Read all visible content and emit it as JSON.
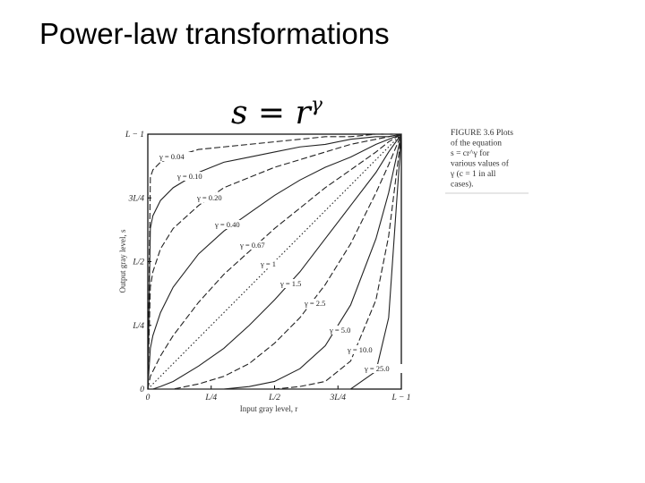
{
  "slide_title": "Power-law transformations",
  "chart_data": {
    "type": "line",
    "formula": {
      "base": "s = r",
      "exponent": "γ"
    },
    "caption": [
      "FIGURE 3.6 Plots",
      "of the equation",
      "s = cr^γ for",
      "various values of",
      "γ (c = 1 in all",
      "cases)."
    ],
    "x_label": "Input gray level, r",
    "y_label": "Output gray level, s",
    "xlim": [
      0,
      1
    ],
    "ylim": [
      0,
      1
    ],
    "xticks": [
      {
        "value": 0,
        "label": "0"
      },
      {
        "value": 0.25,
        "label": "L/4"
      },
      {
        "value": 0.5,
        "label": "L/2"
      },
      {
        "value": 0.75,
        "label": "3L/4"
      },
      {
        "value": 1,
        "label": "L − 1"
      }
    ],
    "yticks": [
      {
        "value": 0,
        "label": "0"
      },
      {
        "value": 0.25,
        "label": "L/4"
      },
      {
        "value": 0.5,
        "label": "L/2"
      },
      {
        "value": 0.75,
        "label": "3L/4"
      },
      {
        "value": 1,
        "label": "L − 1"
      }
    ],
    "x": [
      0,
      0.01,
      0.02,
      0.05,
      0.1,
      0.2,
      0.3,
      0.4,
      0.5,
      0.6,
      0.7,
      0.8,
      0.9,
      0.95,
      1
    ],
    "series": [
      {
        "name": "γ = 0.04",
        "color": "#222222",
        "style": "dashed",
        "values": [
          0,
          0.83,
          0.86,
          0.89,
          0.91,
          0.94,
          0.95,
          0.96,
          0.97,
          0.98,
          0.99,
          0.99,
          1.0,
          1.0,
          1
        ]
      },
      {
        "name": "γ = 0.10",
        "color": "#222222",
        "style": "solid",
        "values": [
          0,
          0.63,
          0.68,
          0.74,
          0.79,
          0.85,
          0.89,
          0.91,
          0.93,
          0.95,
          0.96,
          0.98,
          0.99,
          0.99,
          1
        ]
      },
      {
        "name": "γ = 0.20",
        "color": "#222222",
        "style": "dashed",
        "values": [
          0,
          0.4,
          0.46,
          0.55,
          0.63,
          0.72,
          0.79,
          0.83,
          0.87,
          0.9,
          0.93,
          0.96,
          0.98,
          0.99,
          1
        ]
      },
      {
        "name": "γ = 0.40",
        "color": "#222222",
        "style": "solid",
        "values": [
          0,
          0.16,
          0.21,
          0.3,
          0.4,
          0.53,
          0.62,
          0.69,
          0.76,
          0.82,
          0.87,
          0.91,
          0.96,
          0.98,
          1
        ]
      },
      {
        "name": "γ = 0.67",
        "color": "#222222",
        "style": "dashed",
        "values": [
          0,
          0.05,
          0.07,
          0.13,
          0.21,
          0.34,
          0.45,
          0.54,
          0.63,
          0.71,
          0.79,
          0.86,
          0.93,
          0.97,
          1
        ]
      },
      {
        "name": "γ = 1",
        "color": "#222222",
        "style": "dotted",
        "values": [
          0,
          0.01,
          0.02,
          0.05,
          0.1,
          0.2,
          0.3,
          0.4,
          0.5,
          0.6,
          0.7,
          0.8,
          0.9,
          0.95,
          1
        ]
      },
      {
        "name": "γ = 1.5",
        "color": "#222222",
        "style": "solid",
        "values": [
          0,
          0.0,
          0.0,
          0.01,
          0.03,
          0.09,
          0.16,
          0.25,
          0.35,
          0.46,
          0.59,
          0.72,
          0.85,
          0.93,
          1
        ]
      },
      {
        "name": "γ = 2.5",
        "color": "#222222",
        "style": "dashed",
        "values": [
          0,
          0.0,
          0.0,
          0.0,
          0.0,
          0.02,
          0.05,
          0.1,
          0.18,
          0.28,
          0.41,
          0.57,
          0.77,
          0.88,
          1
        ]
      },
      {
        "name": "γ = 5.0",
        "color": "#222222",
        "style": "solid",
        "values": [
          0,
          0.0,
          0.0,
          0.0,
          0.0,
          0.0,
          0.0,
          0.01,
          0.03,
          0.08,
          0.17,
          0.33,
          0.59,
          0.77,
          1
        ]
      },
      {
        "name": "γ = 10.0",
        "color": "#222222",
        "style": "dashed",
        "values": [
          0,
          0.0,
          0.0,
          0.0,
          0.0,
          0.0,
          0.0,
          0.0,
          0.0,
          0.01,
          0.03,
          0.11,
          0.35,
          0.6,
          1
        ]
      },
      {
        "name": "γ = 25.0",
        "color": "#222222",
        "style": "solid",
        "values": [
          0,
          0.0,
          0.0,
          0.0,
          0.0,
          0.0,
          0.0,
          0.0,
          0.0,
          0.0,
          0.0,
          0.0,
          0.07,
          0.28,
          1
        ]
      }
    ]
  }
}
